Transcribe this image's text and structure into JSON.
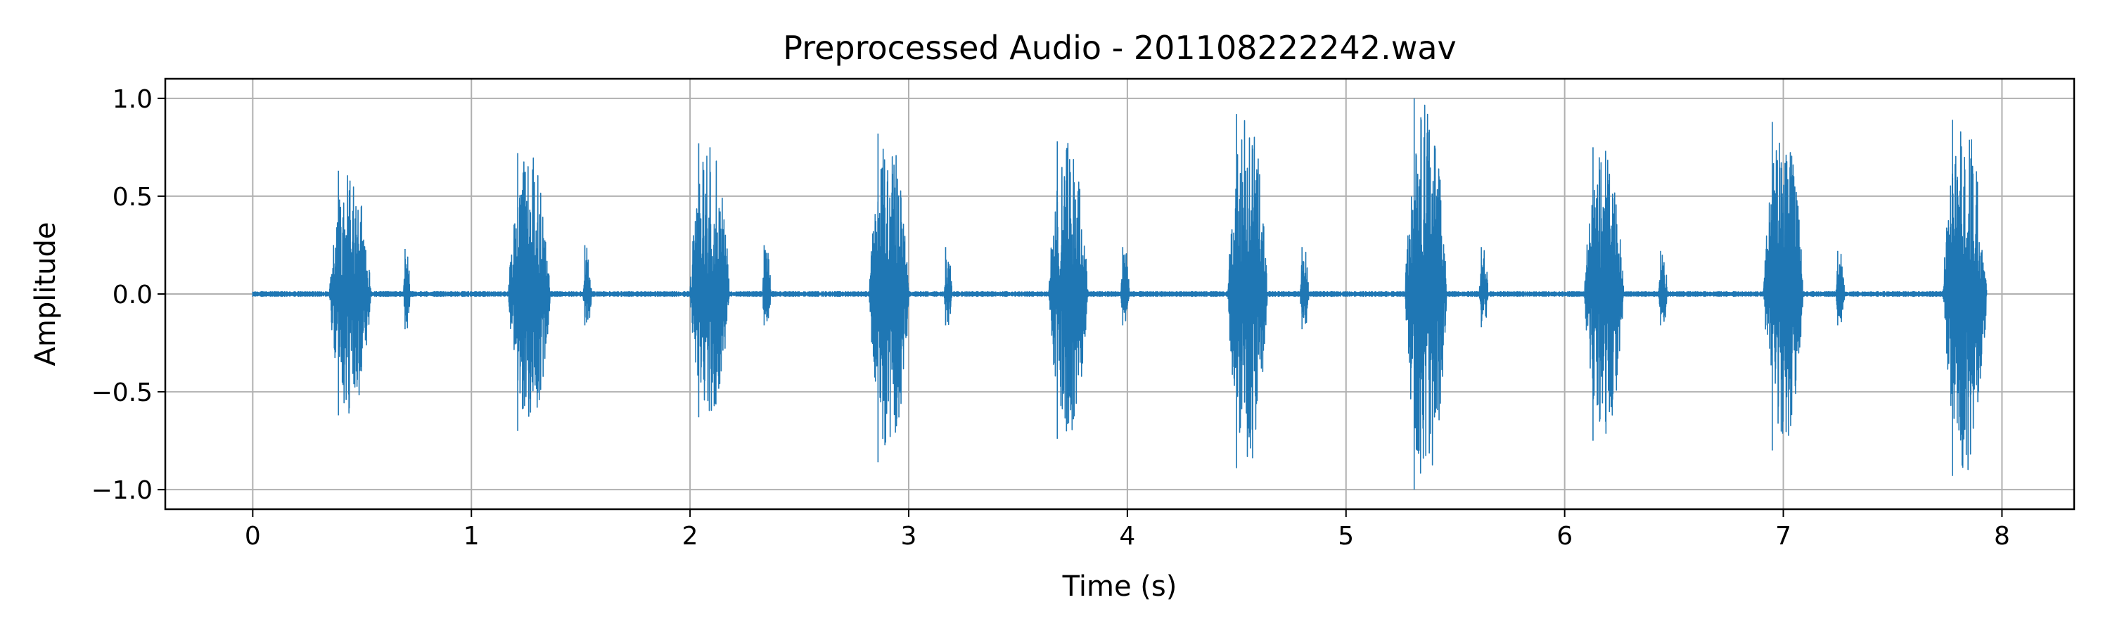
{
  "chart_data": {
    "type": "line",
    "title": "Preprocessed Audio - 201108222242.wav",
    "xlabel": "Time (s)",
    "ylabel": "Amplitude",
    "xlim": [
      -0.4,
      8.33
    ],
    "ylim": [
      -1.1,
      1.1
    ],
    "x_ticks": [
      0,
      1,
      2,
      3,
      4,
      5,
      6,
      7,
      8
    ],
    "x_tick_labels": [
      "0",
      "1",
      "2",
      "3",
      "4",
      "5",
      "6",
      "7",
      "8"
    ],
    "y_ticks": [
      1.0,
      0.5,
      0.0,
      -0.5,
      -1.0
    ],
    "y_tick_labels": [
      "1.0",
      "0.5",
      "0.0",
      "−0.5",
      "−1.0"
    ],
    "grid": true,
    "line_color": "#1f77b4",
    "duration_s": 7.93,
    "noise_floor": 0.008,
    "events": [
      {
        "start": 0.35,
        "end": 0.54,
        "peak_pos": 0.63,
        "peak_neg": -0.62
      },
      {
        "start": 0.69,
        "end": 0.72,
        "peak_pos": 0.23,
        "peak_neg": -0.18
      },
      {
        "start": 1.17,
        "end": 1.36,
        "peak_pos": 0.72,
        "peak_neg": -0.7
      },
      {
        "start": 1.51,
        "end": 1.55,
        "peak_pos": 0.25,
        "peak_neg": -0.16
      },
      {
        "start": 2.0,
        "end": 2.18,
        "peak_pos": 0.77,
        "peak_neg": -0.63
      },
      {
        "start": 2.33,
        "end": 2.37,
        "peak_pos": 0.25,
        "peak_neg": -0.16
      },
      {
        "start": 2.82,
        "end": 3.0,
        "peak_pos": 0.82,
        "peak_neg": -0.86
      },
      {
        "start": 3.16,
        "end": 3.2,
        "peak_pos": 0.24,
        "peak_neg": -0.16
      },
      {
        "start": 3.64,
        "end": 3.82,
        "peak_pos": 0.78,
        "peak_neg": -0.74
      },
      {
        "start": 3.97,
        "end": 4.01,
        "peak_pos": 0.24,
        "peak_neg": -0.16
      },
      {
        "start": 4.46,
        "end": 4.64,
        "peak_pos": 0.92,
        "peak_neg": -0.89
      },
      {
        "start": 4.79,
        "end": 4.83,
        "peak_pos": 0.24,
        "peak_neg": -0.18
      },
      {
        "start": 5.27,
        "end": 5.46,
        "peak_pos": 1.0,
        "peak_neg": -1.0
      },
      {
        "start": 5.61,
        "end": 5.65,
        "peak_pos": 0.24,
        "peak_neg": -0.17
      },
      {
        "start": 6.09,
        "end": 6.27,
        "peak_pos": 0.75,
        "peak_neg": -0.75
      },
      {
        "start": 6.43,
        "end": 6.47,
        "peak_pos": 0.22,
        "peak_neg": -0.16
      },
      {
        "start": 6.91,
        "end": 7.09,
        "peak_pos": 0.88,
        "peak_neg": -0.8
      },
      {
        "start": 7.24,
        "end": 7.28,
        "peak_pos": 0.22,
        "peak_neg": -0.16
      },
      {
        "start": 7.73,
        "end": 7.93,
        "peak_pos": 0.89,
        "peak_neg": -0.93
      }
    ]
  }
}
